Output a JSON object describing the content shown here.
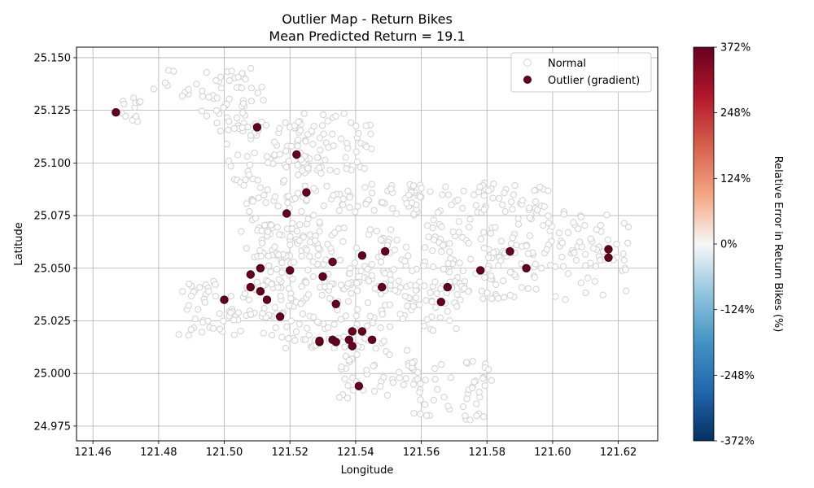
{
  "chart_data": {
    "type": "scatter",
    "title": "Outlier Map - Return Bikes",
    "subtitle": "Mean Predicted Return = 19.1",
    "xlabel": "Longitude",
    "ylabel": "Latitude",
    "xlim": [
      121.455,
      121.632
    ],
    "ylim": [
      24.968,
      25.155
    ],
    "xticks": [
      "121.46",
      "121.48",
      "121.50",
      "121.52",
      "121.54",
      "121.56",
      "121.58",
      "121.60",
      "121.62"
    ],
    "yticks": [
      "24.975",
      "25.000",
      "25.025",
      "25.050",
      "25.075",
      "25.100",
      "25.125",
      "25.150"
    ],
    "grid": true,
    "legend": {
      "position": "top-right",
      "entries": [
        "Normal",
        "Outlier (gradient)"
      ]
    },
    "colorbar": {
      "label": "Relative Error in Return Bikes (%)",
      "range": [
        -372,
        372
      ],
      "ticks": [
        "372%",
        "248%",
        "124%",
        "0%",
        "-124%",
        "-248%",
        "-372%"
      ],
      "colormap": "RdBu_r"
    },
    "colors": {
      "normal_edge": "#d0d0d0",
      "outlier_fill": "#67001f",
      "outlier_edge": "#3d0012"
    },
    "series": [
      {
        "name": "Outlier (gradient)",
        "points": [
          {
            "x": 121.467,
            "y": 25.124
          },
          {
            "x": 121.51,
            "y": 25.117
          },
          {
            "x": 121.522,
            "y": 25.104
          },
          {
            "x": 121.525,
            "y": 25.086
          },
          {
            "x": 121.519,
            "y": 25.076
          },
          {
            "x": 121.542,
            "y": 25.056
          },
          {
            "x": 121.549,
            "y": 25.058
          },
          {
            "x": 121.533,
            "y": 25.053
          },
          {
            "x": 121.511,
            "y": 25.05
          },
          {
            "x": 121.52,
            "y": 25.049
          },
          {
            "x": 121.53,
            "y": 25.046
          },
          {
            "x": 121.508,
            "y": 25.047
          },
          {
            "x": 121.508,
            "y": 25.041
          },
          {
            "x": 121.511,
            "y": 25.039
          },
          {
            "x": 121.513,
            "y": 25.035
          },
          {
            "x": 121.5,
            "y": 25.035
          },
          {
            "x": 121.517,
            "y": 25.027
          },
          {
            "x": 121.534,
            "y": 25.033
          },
          {
            "x": 121.548,
            "y": 25.041
          },
          {
            "x": 121.568,
            "y": 25.041
          },
          {
            "x": 121.566,
            "y": 25.034
          },
          {
            "x": 121.578,
            "y": 25.049
          },
          {
            "x": 121.587,
            "y": 25.058
          },
          {
            "x": 121.592,
            "y": 25.05
          },
          {
            "x": 121.617,
            "y": 25.059
          },
          {
            "x": 121.617,
            "y": 25.055
          },
          {
            "x": 121.539,
            "y": 25.02
          },
          {
            "x": 121.542,
            "y": 25.02
          },
          {
            "x": 121.545,
            "y": 25.016
          },
          {
            "x": 121.538,
            "y": 25.016
          },
          {
            "x": 121.529,
            "y": 25.015
          },
          {
            "x": 121.529,
            "y": 25.0155
          },
          {
            "x": 121.533,
            "y": 25.016
          },
          {
            "x": 121.534,
            "y": 25.015
          },
          {
            "x": 121.539,
            "y": 25.013
          },
          {
            "x": 121.541,
            "y": 24.994
          }
        ]
      }
    ]
  }
}
